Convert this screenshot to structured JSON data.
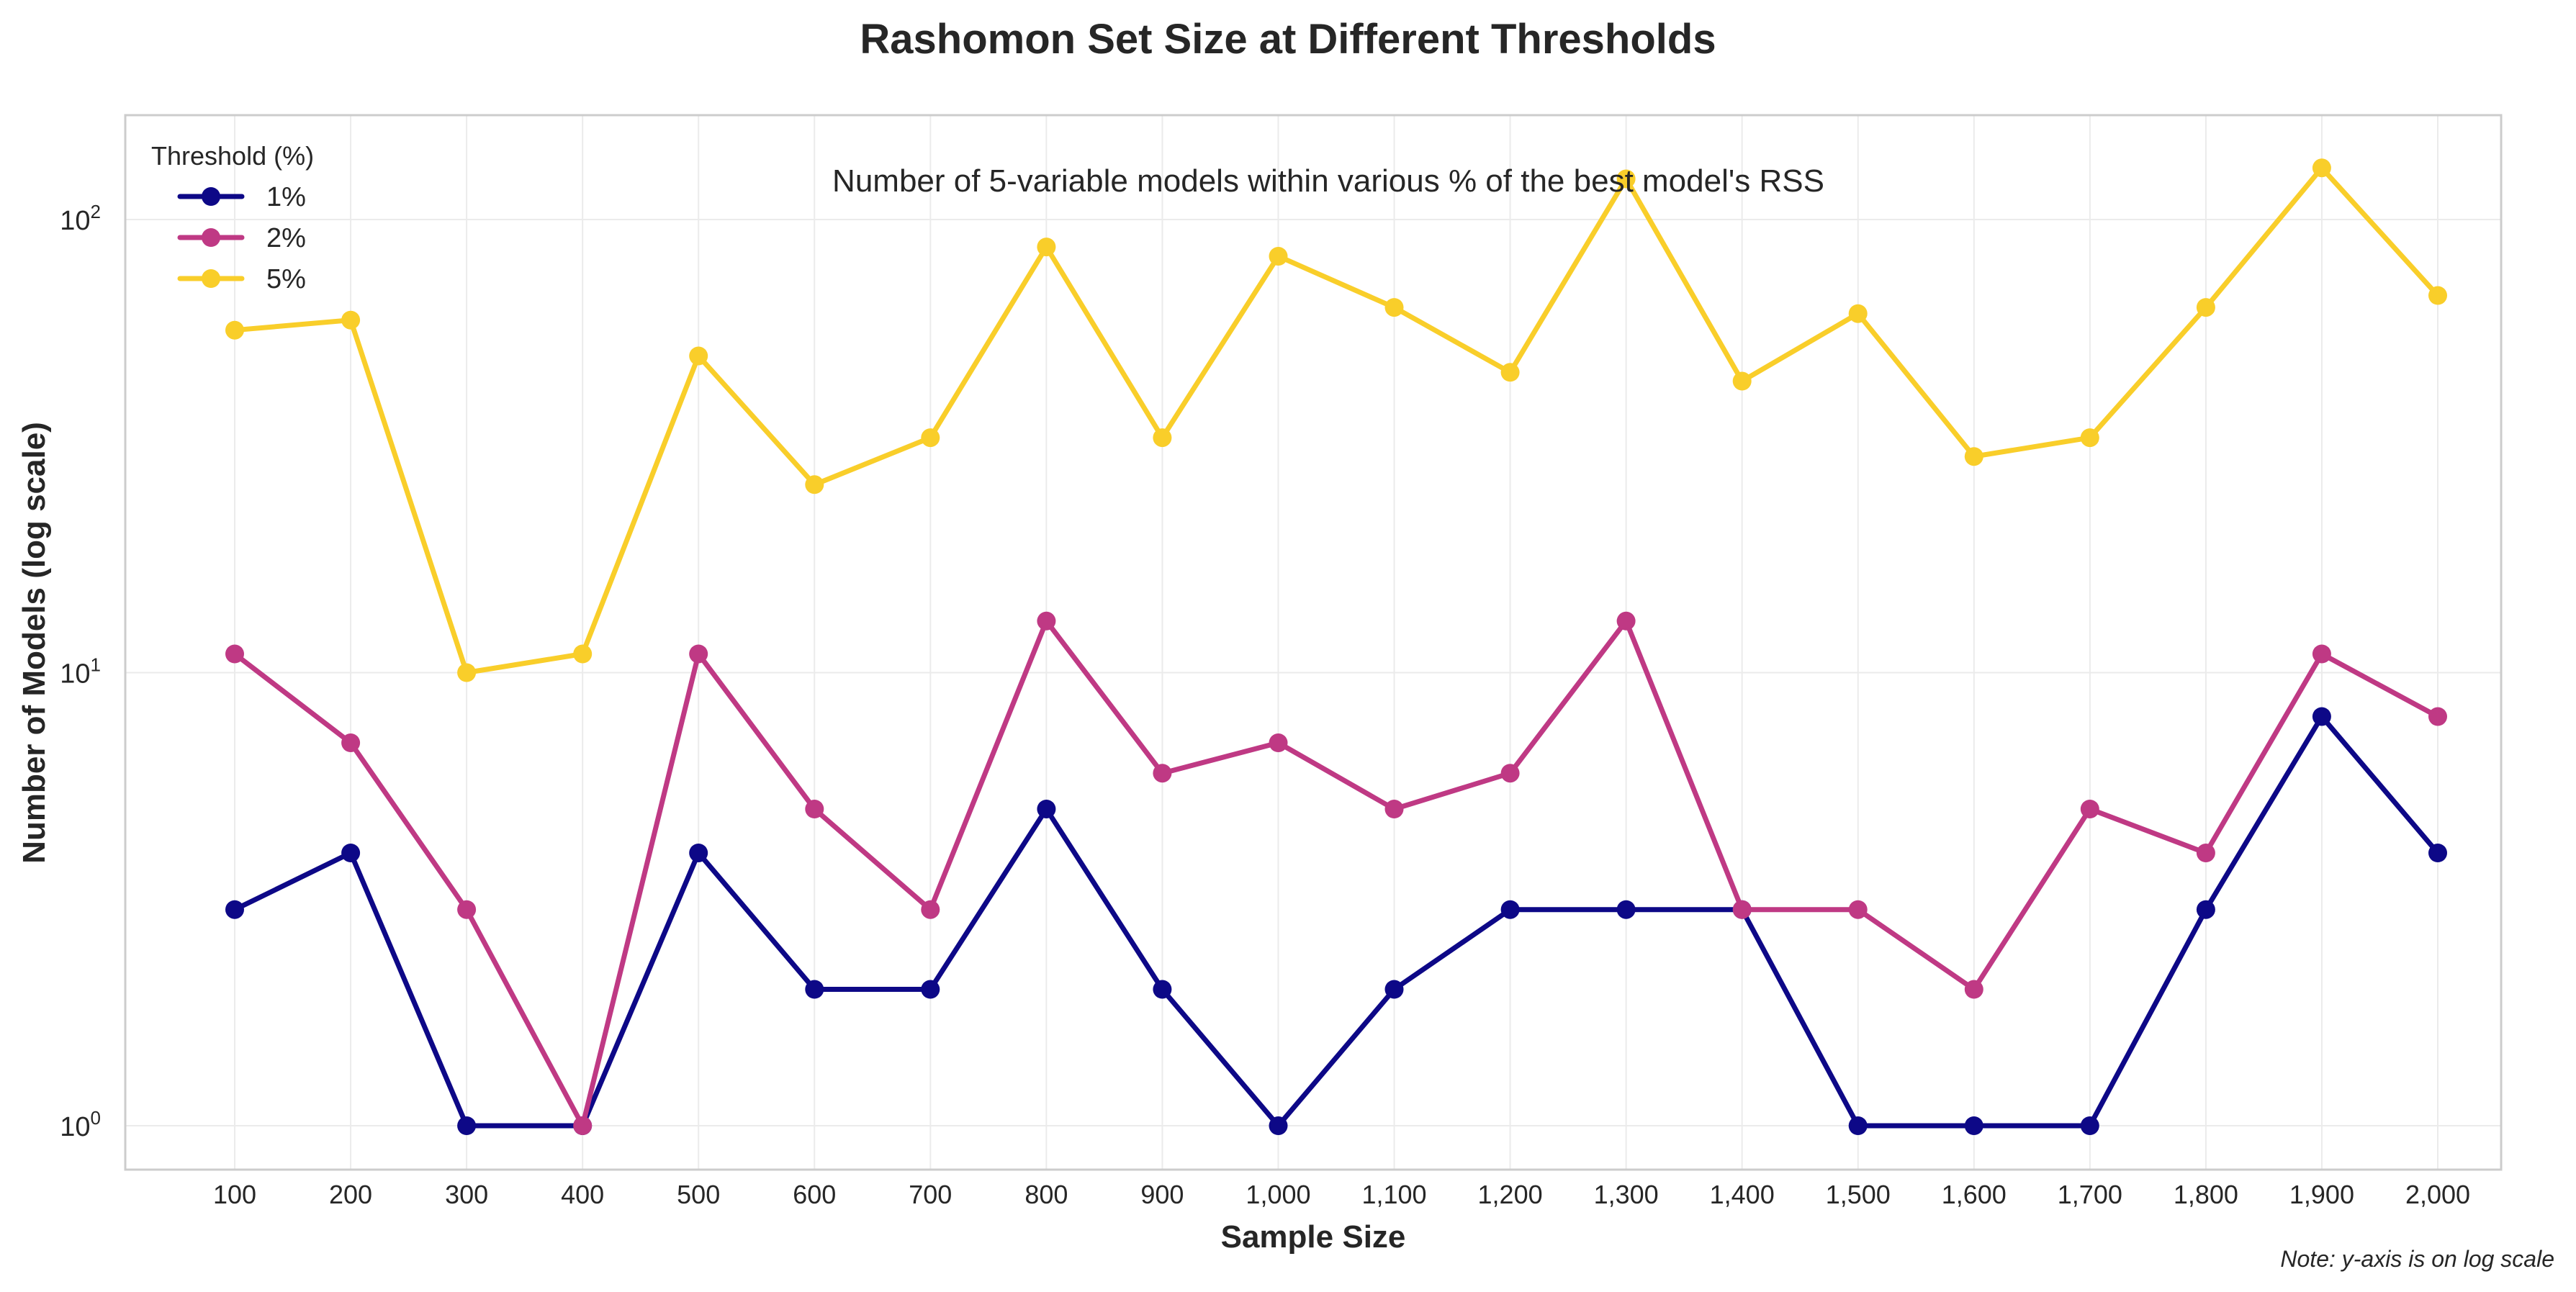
{
  "chart_data": {
    "type": "line",
    "title": "Rashomon Set Size at Different Thresholds",
    "subtitle": "Number of 5-variable models within various % of the best model's RSS",
    "xlabel": "Sample Size",
    "ylabel": "Number of Models (log scale)",
    "note": "Note: y-axis is on log scale",
    "x": [
      100,
      200,
      300,
      400,
      500,
      600,
      700,
      800,
      900,
      1000,
      1100,
      1200,
      1300,
      1400,
      1500,
      1600,
      1700,
      1800,
      1900,
      2000
    ],
    "x_tick_labels": [
      "100",
      "200",
      "300",
      "400",
      "500",
      "600",
      "700",
      "800",
      "900",
      "1,000",
      "1,100",
      "1,200",
      "1,300",
      "1,400",
      "1,500",
      "1,600",
      "1,700",
      "1,800",
      "1,900",
      "2,000"
    ],
    "y_scale": "log",
    "ylim": [
      0.8,
      170
    ],
    "y_ticks": [
      {
        "value": 1,
        "base": "10",
        "exp": "0"
      },
      {
        "value": 10,
        "base": "10",
        "exp": "1"
      },
      {
        "value": 100,
        "base": "10",
        "exp": "2"
      }
    ],
    "grid": true,
    "legend": {
      "title": "Threshold (%)",
      "position": "top-left"
    },
    "series": [
      {
        "name": "1%",
        "color": "#0d0887",
        "values": [
          3,
          4,
          1,
          1,
          4,
          2,
          2,
          5,
          2,
          1,
          2,
          3,
          3,
          3,
          1,
          1,
          1,
          3,
          8,
          4
        ]
      },
      {
        "name": "2%",
        "color": "#bf3984",
        "values": [
          11,
          7,
          3,
          1,
          11,
          5,
          3,
          13,
          6,
          7,
          5,
          6,
          13,
          3,
          3,
          2,
          5,
          4,
          11,
          8
        ]
      },
      {
        "name": "5%",
        "color": "#f9ce2a",
        "values": [
          57,
          60,
          10,
          11,
          50,
          26,
          33,
          87,
          33,
          83,
          64,
          46,
          123,
          44,
          62,
          30,
          33,
          64,
          130,
          68
        ]
      }
    ]
  }
}
